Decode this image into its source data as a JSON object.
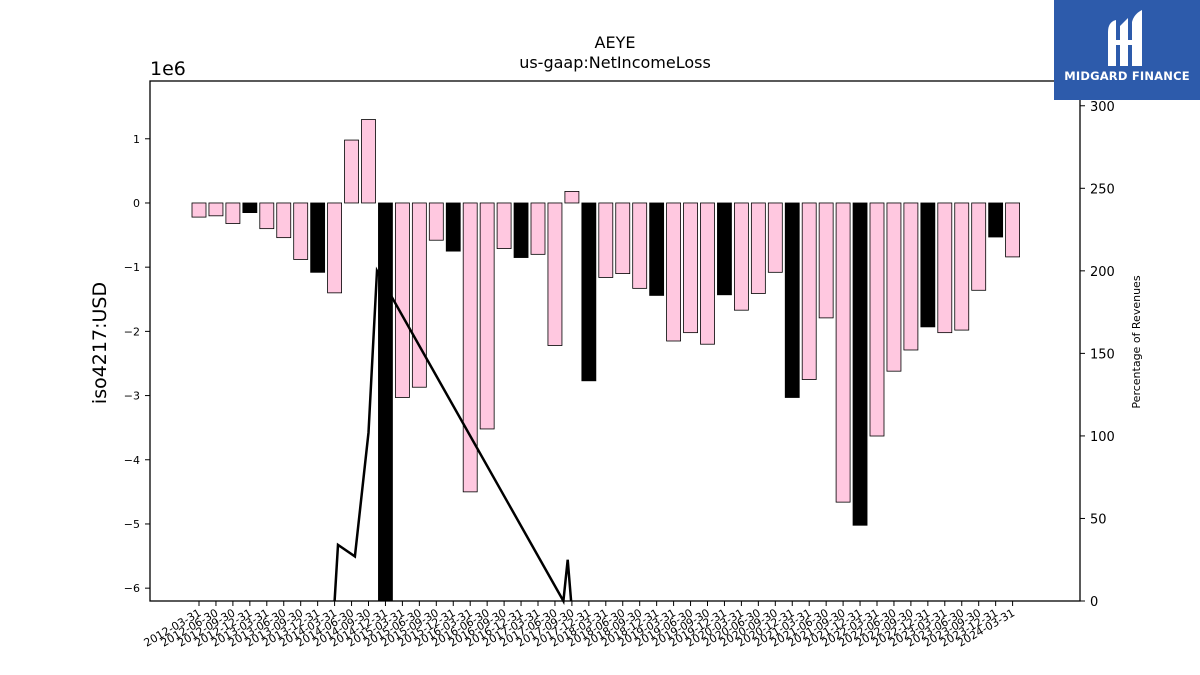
{
  "chart_data": {
    "type": "bar",
    "title": "AEYE",
    "subtitle": "us-gaap:NetIncomeLoss",
    "ylabel": "iso4217:USD",
    "y_offset_label": "1e6",
    "y2label": "Percentage of Revenues",
    "ylim": [
      -6.2,
      1.9
    ],
    "y2lim": [
      0,
      315
    ],
    "yticks": [
      1,
      0,
      -1,
      -2,
      -3,
      -4,
      -5,
      -6
    ],
    "ytick_labels": [
      "1",
      "0",
      "−1",
      "−2",
      "−3",
      "−4",
      "−5",
      "−6"
    ],
    "y2ticks": [
      300,
      250,
      200,
      150,
      100,
      50,
      0
    ],
    "colors": {
      "annual": "#000000",
      "quarterly": "#ffc8e0",
      "edge": "#000000"
    },
    "categories": [
      "2012-03-31",
      "2012-06-30",
      "2012-09-30",
      "2012-12-31",
      "2013-03-31",
      "2013-06-30",
      "2013-09-30",
      "2013-12-31",
      "2014-03-31",
      "2014-06-30",
      "2014-09-30",
      "2014-12-31",
      "2015-03-31",
      "2015-06-30",
      "2015-09-30",
      "2015-12-31",
      "2016-03-31",
      "2016-06-30",
      "2016-09-30",
      "2016-12-31",
      "2017-03-31",
      "2017-06-30",
      "2017-09-30",
      "2017-12-31",
      "2018-03-31",
      "2018-06-30",
      "2018-09-30",
      "2018-12-31",
      "2019-03-31",
      "2019-06-30",
      "2019-09-30",
      "2019-12-31",
      "2020-03-31",
      "2020-06-30",
      "2020-09-30",
      "2020-12-31",
      "2021-03-31",
      "2021-06-30",
      "2021-09-30",
      "2021-12-31",
      "2022-03-31",
      "2022-06-30",
      "2022-09-30",
      "2022-12-31",
      "2023-03-31",
      "2023-06-30",
      "2023-09-30",
      "2023-12-31",
      "2024-03-31"
    ],
    "values": [
      -0.22,
      -0.2,
      -0.32,
      -0.15,
      -0.4,
      -0.54,
      -0.88,
      -1.08,
      -1.4,
      0.98,
      1.3,
      -6.2,
      -3.03,
      -2.87,
      -0.58,
      -0.75,
      -4.5,
      -3.52,
      -0.71,
      -0.85,
      -0.8,
      -2.22,
      0.18,
      -2.77,
      -1.16,
      -1.1,
      -1.33,
      -1.44,
      -2.15,
      -2.02,
      -2.2,
      -1.43,
      -1.67,
      -1.41,
      -1.08,
      -3.03,
      -2.75,
      -1.79,
      -4.66,
      -5.02,
      -3.63,
      -2.62,
      -2.29,
      -1.93,
      -2.02,
      -1.98,
      -1.36,
      -0.53,
      -0.84
    ],
    "annual": [
      false,
      false,
      false,
      true,
      false,
      false,
      false,
      true,
      false,
      false,
      false,
      true,
      false,
      false,
      false,
      true,
      false,
      false,
      false,
      true,
      false,
      false,
      false,
      true,
      false,
      false,
      false,
      true,
      false,
      false,
      false,
      true,
      false,
      false,
      false,
      true,
      false,
      false,
      false,
      true,
      false,
      false,
      false,
      true,
      false,
      false,
      false,
      true,
      false
    ],
    "pct_line": {
      "name": "Percentage of Revenues",
      "points": [
        [
          8.0,
          0
        ],
        [
          8.2,
          34
        ],
        [
          9.2,
          27
        ],
        [
          10.0,
          102
        ],
        [
          10.5,
          200
        ],
        [
          21.5,
          0
        ],
        [
          21.75,
          25
        ],
        [
          21.95,
          0
        ]
      ]
    }
  },
  "brand": {
    "name": "MIDGARD FINANCE",
    "icon": "midgard-logo-icon"
  }
}
